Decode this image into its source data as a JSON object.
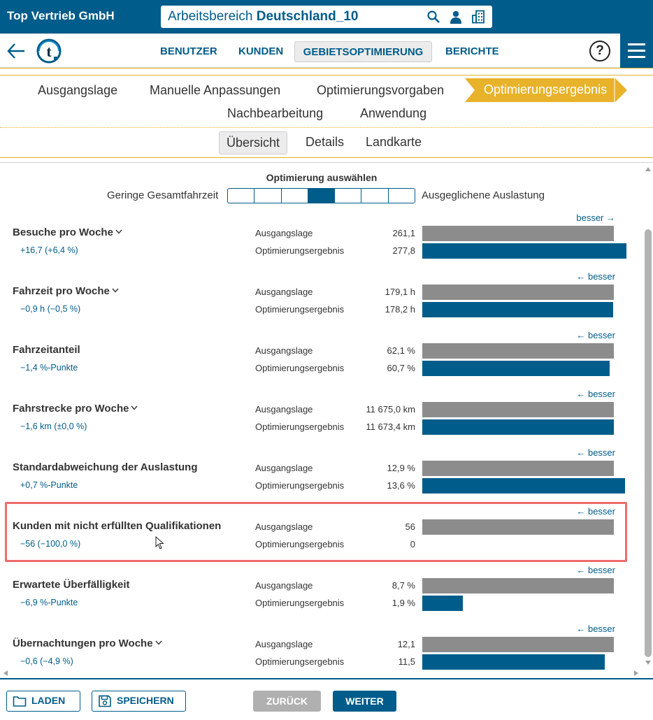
{
  "header": {
    "company": "Top Vertrieb GmbH",
    "workspace_prefix": "Arbeitsbereich",
    "workspace_name": "Deutschland_10"
  },
  "nav": {
    "items": [
      "BENUTZER",
      "KUNDEN",
      "GEBIETSOPTIMIERUNG",
      "BERICHTE"
    ],
    "active": "GEBIETSOPTIMIERUNG",
    "help": "?"
  },
  "steps": {
    "items": [
      "Ausgangslage",
      "Manuelle Anpassungen",
      "Optimierungsvorgaben",
      "Optimierungsergebnis",
      "Nachbearbeitung",
      "Anwendung"
    ],
    "active": "Optimierungsergebnis"
  },
  "subtabs": {
    "items": [
      "Übersicht",
      "Details",
      "Landkarte"
    ],
    "active": "Übersicht"
  },
  "optimizer": {
    "title": "Optimierung auswählen",
    "left_label": "Geringe Gesamtfahrzeit",
    "right_label": "Ausgeglichene Auslastung",
    "segments": 7,
    "selected_index": 3
  },
  "labels": {
    "baseline": "Ausgangslage",
    "result": "Optimierungsergebnis"
  },
  "metrics": [
    {
      "title": "Besuche pro Woche",
      "expandable": true,
      "delta": "+16,7 (+6,4 %)",
      "better": "besser →",
      "baseline": "261,1",
      "result": "277,8",
      "baseline_fraction": 0.94,
      "result_fraction": 1.0
    },
    {
      "title": "Fahrzeit pro Woche",
      "expandable": true,
      "delta": "−0,9 h (−0,5 %)",
      "better": "← besser",
      "baseline": "179,1 h",
      "result": "178,2 h",
      "baseline_fraction": 0.94,
      "result_fraction": 0.935
    },
    {
      "title": "Fahrzeitanteil",
      "expandable": false,
      "delta": "−1,4 %-Punkte",
      "better": "← besser",
      "baseline": "62,1 %",
      "result": "60,7 %",
      "baseline_fraction": 0.94,
      "result_fraction": 0.918
    },
    {
      "title": "Fahrstrecke pro Woche",
      "expandable": true,
      "delta": "−1,6 km (±0,0 %)",
      "better": "← besser",
      "baseline": "11 675,0 km",
      "result": "11 673,4 km",
      "baseline_fraction": 0.94,
      "result_fraction": 0.94
    },
    {
      "title": "Standardabweichung der Auslastung",
      "expandable": false,
      "delta": "+0,7 %-Punkte",
      "better": "← besser",
      "baseline": "12,9 %",
      "result": "13,6 %",
      "baseline_fraction": 0.94,
      "result_fraction": 0.993
    },
    {
      "title": "Kunden mit nicht erfüllten Qualifikationen",
      "expandable": false,
      "delta": "−56 (−100,0 %)",
      "better": "← besser",
      "baseline": "56",
      "result": "0",
      "baseline_fraction": 0.94,
      "result_fraction": 0.0
    },
    {
      "title": "Erwartete Überfälligkeit",
      "expandable": false,
      "delta": "−6,9 %-Punkte",
      "better": "← besser",
      "baseline": "8,7 %",
      "result": "1,9 %",
      "baseline_fraction": 0.94,
      "result_fraction": 0.2
    },
    {
      "title": "Übernachtungen pro Woche",
      "expandable": true,
      "delta": "−0,6 (−4,9 %)",
      "better": "← besser",
      "baseline": "12,1",
      "result": "11,5",
      "baseline_fraction": 0.94,
      "result_fraction": 0.893
    }
  ],
  "footer": {
    "load": "LADEN",
    "save": "SPEICHERN",
    "back": "ZURÜCK",
    "next": "WEITER"
  },
  "colors": {
    "brand": "#005c8a",
    "accent": "#e8b32a",
    "baseline_bar": "#8c8c8c",
    "highlight": "#ef6b6b",
    "disabled": "#b0b0b0"
  }
}
